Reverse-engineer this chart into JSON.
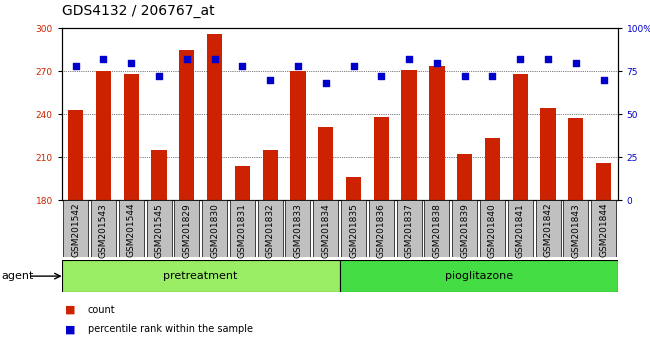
{
  "title": "GDS4132 / 206767_at",
  "samples": [
    "GSM201542",
    "GSM201543",
    "GSM201544",
    "GSM201545",
    "GSM201829",
    "GSM201830",
    "GSM201831",
    "GSM201832",
    "GSM201833",
    "GSM201834",
    "GSM201835",
    "GSM201836",
    "GSM201837",
    "GSM201838",
    "GSM201839",
    "GSM201840",
    "GSM201841",
    "GSM201842",
    "GSM201843",
    "GSM201844"
  ],
  "counts": [
    243,
    270,
    268,
    215,
    285,
    296,
    204,
    215,
    270,
    231,
    196,
    238,
    271,
    274,
    212,
    223,
    268,
    244,
    237,
    206
  ],
  "percentile_ranks": [
    78,
    82,
    80,
    72,
    82,
    82,
    78,
    70,
    78,
    68,
    78,
    72,
    82,
    80,
    72,
    72,
    82,
    82,
    80,
    70
  ],
  "pretreatment_count": 10,
  "pioglitazone_count": 10,
  "ylim_left": [
    180,
    300
  ],
  "ylim_right": [
    0,
    100
  ],
  "yticks_left": [
    180,
    210,
    240,
    270,
    300
  ],
  "yticks_right": [
    0,
    25,
    50,
    75,
    100
  ],
  "bar_color": "#CC2200",
  "dot_color": "#0000CC",
  "pretreatment_color": "#99EE66",
  "pioglitazone_color": "#44DD44",
  "agent_label": "agent",
  "pretreatment_label": "pretreatment",
  "pioglitazone_label": "pioglitazone",
  "legend_count_label": "count",
  "legend_percentile_label": "percentile rank within the sample",
  "title_fontsize": 10,
  "tick_fontsize": 6.5,
  "label_fontsize": 8,
  "grid_lines": [
    210,
    240,
    270
  ],
  "gray_box_color": "#C0C0C0",
  "agent_arrow_color": "#008000"
}
